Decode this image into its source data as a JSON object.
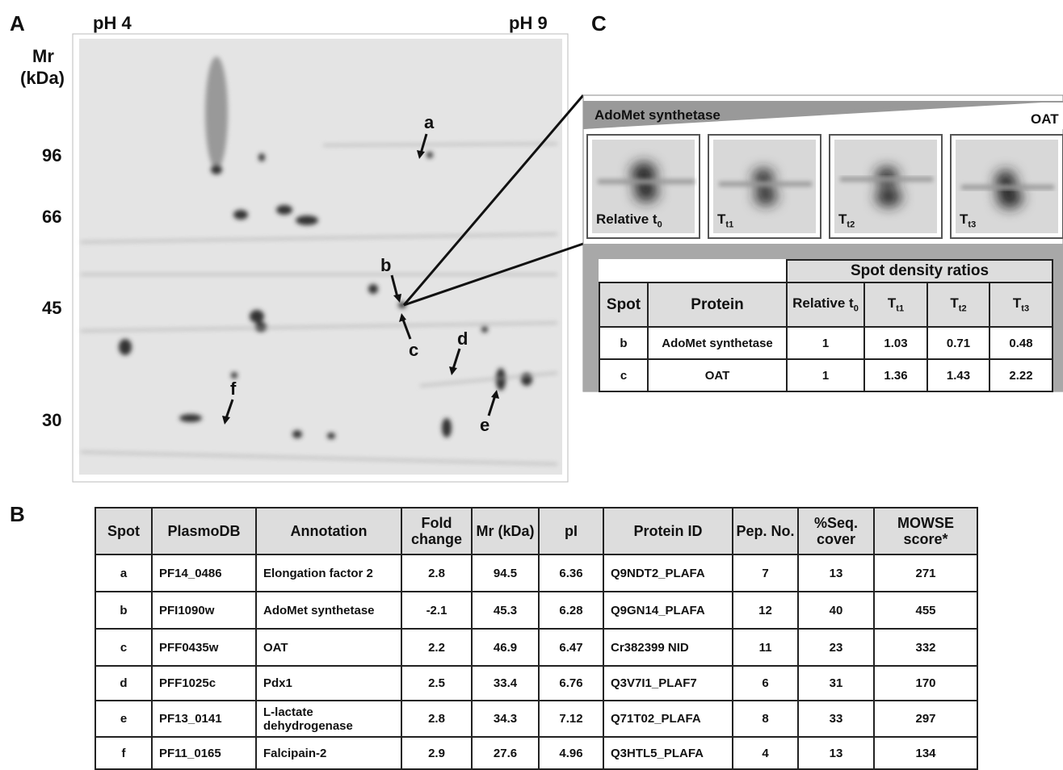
{
  "panel_a": {
    "label": "A",
    "ph_left": "pH 4",
    "ph_right": "pH 9",
    "mr_label": [
      "Mr",
      "(kDa)"
    ],
    "mr_markers": [
      "96",
      "66",
      "45",
      "30"
    ],
    "spots": [
      "a",
      "b",
      "c",
      "d",
      "e",
      "f"
    ]
  },
  "panel_c": {
    "label": "C",
    "gradient_left": "AdoMet synthetase",
    "gradient_right": "OAT",
    "images": [
      {
        "text": "Relative t",
        "sub": "0"
      },
      {
        "text": "T",
        "sub": "t1"
      },
      {
        "text": "T",
        "sub": "t2"
      },
      {
        "text": "T",
        "sub": "t3"
      }
    ],
    "table": {
      "group_header": "Spot density ratios",
      "columns": [
        "Spot",
        "Protein",
        {
          "text": "Relative t",
          "sub": "0"
        },
        {
          "text": "T",
          "sub": "t1"
        },
        {
          "text": "T",
          "sub": "t2"
        },
        {
          "text": "T",
          "sub": "t3"
        }
      ],
      "rows": [
        [
          "b",
          "AdoMet synthetase",
          1,
          1.03,
          0.71,
          0.48
        ],
        [
          "c",
          "OAT",
          1,
          1.36,
          1.43,
          2.22
        ]
      ]
    }
  },
  "panel_b": {
    "label": "B",
    "table": {
      "columns": [
        "Spot",
        "PlasmoDB",
        "Annotation",
        "Fold change",
        "Mr (kDa)",
        "pI",
        "Protein ID",
        "Pep. No.",
        "%Seq. cover",
        "MOWSE score*"
      ],
      "rows": [
        [
          "a",
          "PF14_0486",
          "Elongation factor 2",
          2.8,
          94.5,
          6.36,
          "Q9NDT2_PLAFA",
          7,
          13,
          271
        ],
        [
          "b",
          "PFI1090w",
          "AdoMet synthetase",
          -2.1,
          45.3,
          6.28,
          "Q9GN14_PLAFA",
          12,
          40,
          455
        ],
        [
          "c",
          "PFF0435w",
          "OAT",
          2.2,
          46.9,
          6.47,
          "Cr382399 NID",
          11,
          23,
          332
        ],
        [
          "d",
          "PFF1025c",
          "Pdx1",
          2.5,
          33.4,
          6.76,
          "Q3V7I1_PLAF7",
          6,
          31,
          170
        ],
        [
          "e",
          "PF13_0141",
          "L-lactate dehydrogenase",
          2.8,
          34.3,
          7.12,
          "Q71T02_PLAFA",
          8,
          33,
          297
        ],
        [
          "f",
          "PF11_0165",
          "Falcipain-2",
          2.9,
          27.6,
          4.96,
          "Q3HTL5_PLAFA",
          4,
          13,
          134
        ]
      ]
    }
  }
}
